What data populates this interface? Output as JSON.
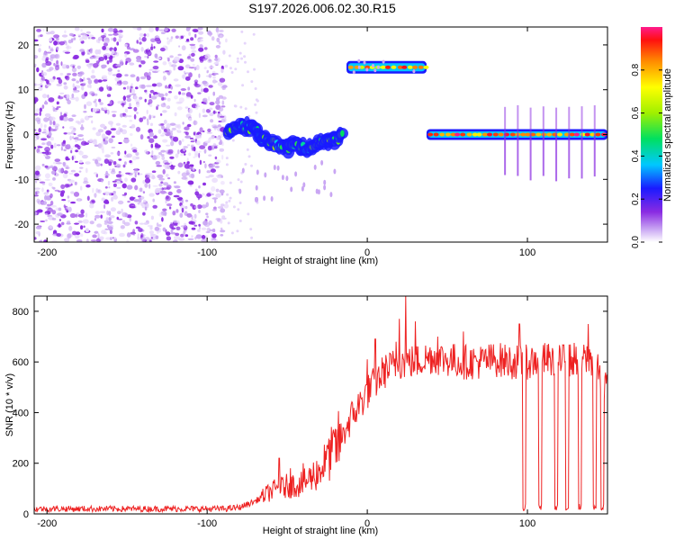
{
  "title": "S197.2026.006.02.30.R15",
  "chart_data": [
    {
      "type": "heatmap",
      "title": "S197.2026.006.02.30.R15",
      "xlabel": "Height of straight line (km)",
      "ylabel": "Frequency (Hz)",
      "xlim": [
        -208,
        150
      ],
      "ylim": [
        -24,
        24
      ],
      "x_ticks": [
        -200,
        -100,
        0,
        100
      ],
      "x_tick_labels": [
        "-200",
        "-100",
        "0",
        "100"
      ],
      "y_ticks": [
        -20,
        -10,
        0,
        10,
        20
      ],
      "y_tick_labels": [
        "-20",
        "-10",
        "0",
        "10",
        "20"
      ],
      "colorbar": {
        "label": "Normalized spectral amplitude",
        "range": [
          0,
          1
        ],
        "ticks": [
          0,
          0.2,
          0.4,
          0.6,
          0.8
        ],
        "tick_labels": [
          "0.0",
          "0.2",
          "0.4",
          "0.6",
          "0.8"
        ]
      },
      "regions": [
        {
          "name": "noise",
          "x_range": [
            -208,
            -88
          ],
          "f_range": [
            -24,
            24
          ],
          "amplitude": 0.08
        },
        {
          "name": "wandering-tone",
          "points": [
            [
              -88,
              1
            ],
            [
              -80,
              2
            ],
            [
              -72,
              1.5
            ],
            [
              -65,
              -1
            ],
            [
              -58,
              -2
            ],
            [
              -50,
              -3
            ],
            [
              -45,
              -2
            ],
            [
              -38,
              -3
            ],
            [
              -30,
              -2
            ],
            [
              -22,
              -1.5
            ],
            [
              -15,
              0
            ]
          ],
          "amplitude": 0.45
        },
        {
          "name": "tone-15hz",
          "x_range": [
            -13,
            37
          ],
          "frequency": 15,
          "amplitude": 0.85
        },
        {
          "name": "tone-0hz",
          "x_range": [
            37,
            150
          ],
          "frequency": 0,
          "amplitude": 0.9
        }
      ]
    },
    {
      "type": "line",
      "xlabel": "Height of straight line (km)",
      "ylabel": "SNR (10 * v/v)",
      "xlim": [
        -208,
        150
      ],
      "ylim": [
        0,
        860
      ],
      "x_ticks": [
        -200,
        -100,
        0,
        100
      ],
      "x_tick_labels": [
        "-200",
        "-100",
        "0",
        "100"
      ],
      "y_ticks": [
        0,
        200,
        400,
        600,
        800
      ],
      "y_tick_labels": [
        "0",
        "200",
        "400",
        "600",
        "800"
      ],
      "series": [
        {
          "name": "SNR",
          "color": "#ee2222",
          "trend": {
            "x": [
              -208,
              -90,
              -80,
              -70,
              -60,
              -50,
              -40,
              -30,
              -20,
              -10,
              0,
              10,
              20,
              30,
              40,
              50,
              60,
              70,
              80,
              90,
              100,
              110,
              120,
              130,
              140,
              150
            ],
            "y": [
              20,
              20,
              25,
              50,
              90,
              110,
              120,
              170,
              260,
              380,
              480,
              560,
              600,
              600,
              620,
              610,
              600,
              600,
              610,
              600,
              600,
              610,
              600,
              610,
              610,
              500
            ]
          },
          "peaks": [
            [
              -55,
              220
            ],
            [
              -48,
              180
            ],
            [
              -40,
              200
            ],
            [
              -25,
              270
            ],
            [
              -15,
              340
            ],
            [
              0,
              610
            ],
            [
              5,
              690
            ],
            [
              18,
              680
            ],
            [
              20,
              770
            ],
            [
              24,
              860
            ],
            [
              30,
              760
            ],
            [
              44,
              700
            ],
            [
              60,
              720
            ],
            [
              95,
              750
            ],
            [
              118,
              740
            ],
            [
              138,
              750
            ]
          ],
          "dropouts": [
            98,
            108,
            118,
            125,
            133,
            142,
            147
          ]
        }
      ]
    }
  ]
}
